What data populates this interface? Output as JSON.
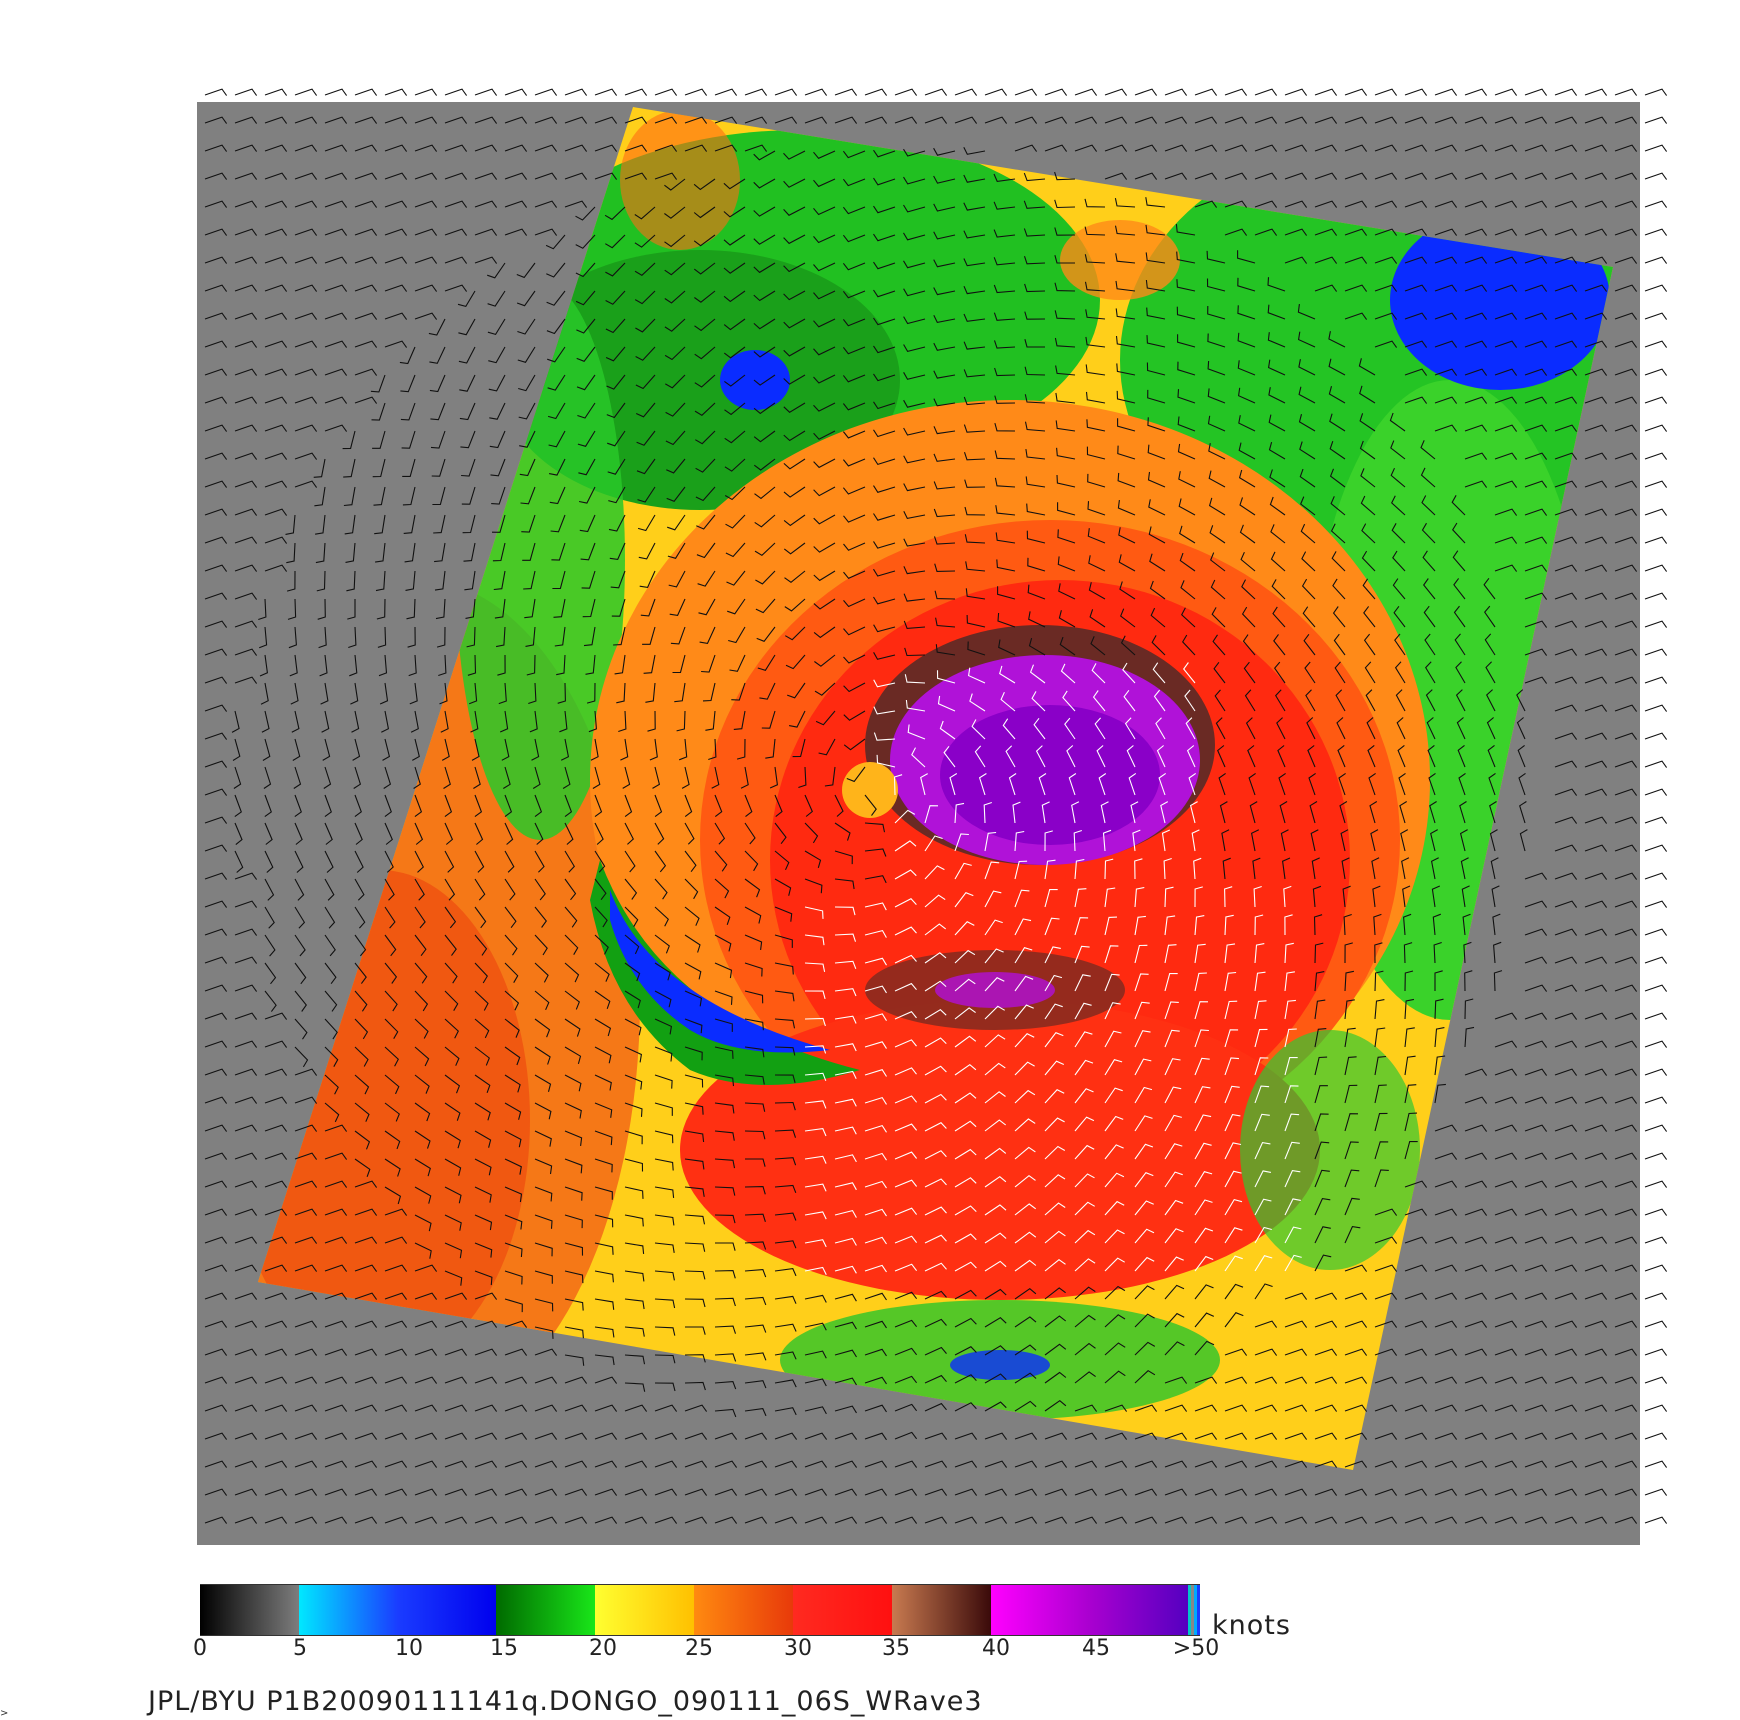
{
  "colorbar": {
    "units": "knots",
    "ticks": [
      "0",
      "5",
      "10",
      "15",
      "20",
      "25",
      "30",
      "35",
      "40",
      "45",
      ">50"
    ],
    "segments": [
      {
        "from": "#000000",
        "to": "#7d7d7d",
        "label": "0-5"
      },
      {
        "from": "#00e8ff",
        "to": "#1a3cff",
        "label": "5-10"
      },
      {
        "from": "#1a3cff",
        "to": "#0000ee",
        "label": "10-15"
      },
      {
        "from": "#006a00",
        "to": "#19e619",
        "label": "15-20"
      },
      {
        "from": "#ffff30",
        "to": "#ffc000",
        "label": "20-25"
      },
      {
        "from": "#ff8a10",
        "to": "#e83a0a",
        "label": "25-30"
      },
      {
        "from": "#ff2a20",
        "to": "#ff1010",
        "label": "30-35"
      },
      {
        "from": "#c87a50",
        "to": "#3a0a0a",
        "label": "35-40"
      },
      {
        "from": "#ff00ff",
        "to": "#aa00d0",
        "label": "40-45"
      },
      {
        "from": "#aa00d0",
        "to": "#5500c0",
        "label": "45-50"
      }
    ],
    "end_stripes": [
      "#00c8c8",
      "#888888",
      "#00aaff",
      "#1a3cff"
    ]
  },
  "caption": "JPL/BYU  P1B20090111141q.DONGO_090111_06S_WRave3",
  "map": {
    "background_color": "#808080",
    "storm_name": "DONGO",
    "swath_colors": {
      "outer": "#ff9a1a",
      "yellow_band": "#ffd01a",
      "green": "#1fcc1f",
      "blue": "#0a2cff",
      "red": "#ff2a10",
      "brown": "#7a2a20",
      "purple": "#c010e8"
    }
  }
}
